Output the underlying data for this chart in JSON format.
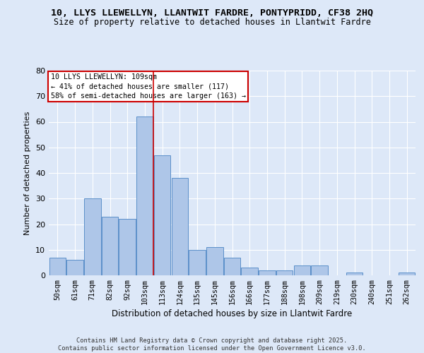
{
  "title_line1": "10, LLYS LLEWELLYN, LLANTWIT FARDRE, PONTYPRIDD, CF38 2HQ",
  "title_line2": "Size of property relative to detached houses in Llantwit Fardre",
  "xlabel": "Distribution of detached houses by size in Llantwit Fardre",
  "ylabel": "Number of detached properties",
  "categories": [
    "50sqm",
    "61sqm",
    "71sqm",
    "82sqm",
    "92sqm",
    "103sqm",
    "113sqm",
    "124sqm",
    "135sqm",
    "145sqm",
    "156sqm",
    "166sqm",
    "177sqm",
    "188sqm",
    "198sqm",
    "209sqm",
    "219sqm",
    "230sqm",
    "240sqm",
    "251sqm",
    "262sqm"
  ],
  "values": [
    7,
    6,
    30,
    23,
    22,
    62,
    47,
    38,
    10,
    11,
    7,
    3,
    2,
    2,
    4,
    4,
    0,
    1,
    0,
    0,
    1
  ],
  "bar_color": "#aec6e8",
  "bar_edge_color": "#5b8fc9",
  "background_color": "#dde8f8",
  "fig_background_color": "#dde8f8",
  "grid_color": "#ffffff",
  "red_line_index": 5,
  "annotation_box_text": "10 LLYS LLEWELLYN: 109sqm\n← 41% of detached houses are smaller (117)\n58% of semi-detached houses are larger (163) →",
  "annotation_box_color": "#ffffff",
  "annotation_box_edge_color": "#cc0000",
  "footer_text": "Contains HM Land Registry data © Crown copyright and database right 2025.\nContains public sector information licensed under the Open Government Licence v3.0.",
  "ylim": [
    0,
    80
  ],
  "yticks": [
    0,
    10,
    20,
    30,
    40,
    50,
    60,
    70,
    80
  ]
}
